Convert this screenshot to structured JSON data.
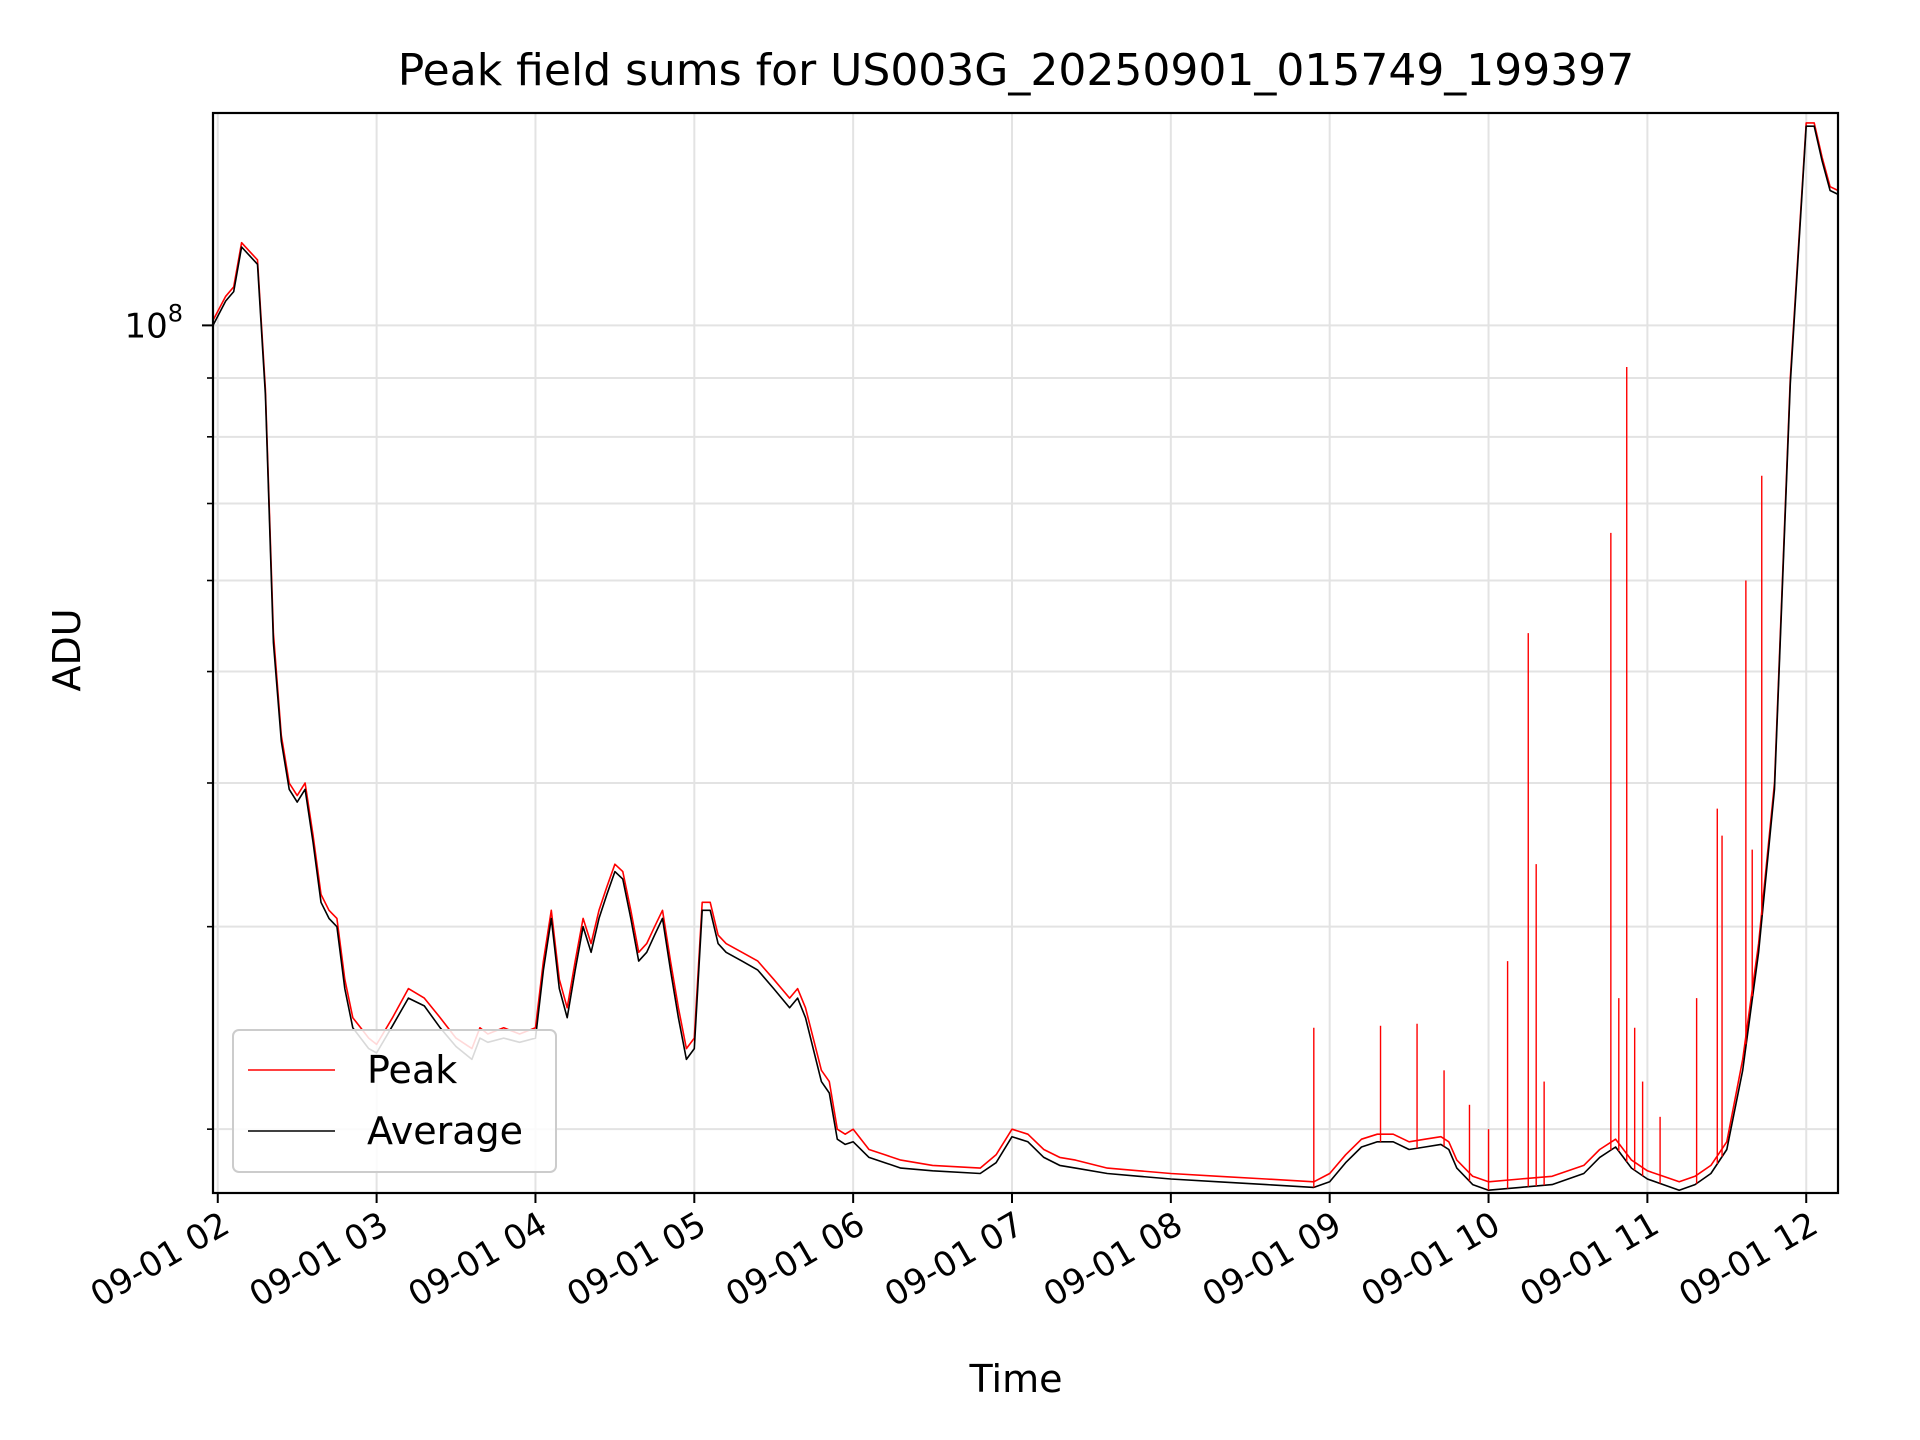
{
  "chart_data": {
    "type": "line",
    "title": "Peak field sums for US003G_20250901_015749_199397",
    "xlabel": "Time",
    "ylabel": "ADU",
    "y_scale": "log",
    "ylim": [
      17600000,
      153000000
    ],
    "y_tick_labels": [
      {
        "value": 100000000,
        "base": "10",
        "exp": "8"
      }
    ],
    "y_minor_ticks": [
      20000000,
      30000000,
      40000000,
      50000000,
      60000000,
      70000000,
      80000000,
      90000000
    ],
    "x_tick_labels": [
      "09-01 02",
      "09-01 03",
      "09-01 04",
      "09-01 05",
      "09-01 06",
      "09-01 07",
      "09-01 08",
      "09-01 09",
      "09-01 10",
      "09-01 11",
      "09-01 12"
    ],
    "x_ticks_hours": [
      2,
      3,
      4,
      5,
      6,
      7,
      8,
      9,
      10,
      11,
      12
    ],
    "xlim_hours": [
      1.97,
      12.2
    ],
    "grid": true,
    "legend_position": "lower-left",
    "series": [
      {
        "name": "Peak",
        "color": "#ff0000",
        "x": [
          1.97,
          2.05,
          2.1,
          2.15,
          2.2,
          2.25,
          2.3,
          2.35,
          2.4,
          2.45,
          2.5,
          2.55,
          2.6,
          2.65,
          2.7,
          2.75,
          2.8,
          2.85,
          2.9,
          2.95,
          3.0,
          3.1,
          3.2,
          3.3,
          3.4,
          3.5,
          3.6,
          3.65,
          3.7,
          3.8,
          3.9,
          4.0,
          4.05,
          4.1,
          4.15,
          4.2,
          4.25,
          4.3,
          4.35,
          4.4,
          4.45,
          4.5,
          4.55,
          4.6,
          4.65,
          4.7,
          4.75,
          4.8,
          4.85,
          4.9,
          4.95,
          5.0,
          5.05,
          5.1,
          5.15,
          5.2,
          5.3,
          5.4,
          5.5,
          5.6,
          5.65,
          5.7,
          5.8,
          5.85,
          5.9,
          5.95,
          6.0,
          6.1,
          6.2,
          6.3,
          6.5,
          6.8,
          6.9,
          7.0,
          7.1,
          7.2,
          7.3,
          7.4,
          7.6,
          7.8,
          8.0,
          8.3,
          8.6,
          8.9,
          9.0,
          9.1,
          9.2,
          9.3,
          9.4,
          9.5,
          9.6,
          9.7,
          9.75,
          9.8,
          9.9,
          10.0,
          10.2,
          10.4,
          10.6,
          10.7,
          10.8,
          10.9,
          11.0,
          11.1,
          11.2,
          11.3,
          11.4,
          11.5,
          11.6,
          11.7,
          11.8,
          11.9,
          12.0,
          12.05,
          12.1,
          12.15,
          12.2
        ],
        "values": [
          101000000,
          106000000,
          108000000,
          118000000,
          116000000,
          114000000,
          88000000,
          54000000,
          44000000,
          40000000,
          39000000,
          40000000,
          36000000,
          32000000,
          31000000,
          30500000,
          27000000,
          25000000,
          24500000,
          24000000,
          23700000,
          25000000,
          26500000,
          26000000,
          25000000,
          24000000,
          23500000,
          24500000,
          24200000,
          24500000,
          24200000,
          24500000,
          28000000,
          31000000,
          27000000,
          25500000,
          28000000,
          30500000,
          29000000,
          31000000,
          32500000,
          34000000,
          33500000,
          31000000,
          28500000,
          29000000,
          30000000,
          31000000,
          28000000,
          25500000,
          23500000,
          24000000,
          31500000,
          31500000,
          29500000,
          29000000,
          28500000,
          28000000,
          27000000,
          26000000,
          26500000,
          25500000,
          22500000,
          22000000,
          20000000,
          19800000,
          20000000,
          19200000,
          19000000,
          18800000,
          18600000,
          18500000,
          19000000,
          20000000,
          19800000,
          19200000,
          18900000,
          18800000,
          18500000,
          18400000,
          18300000,
          18200000,
          18100000,
          18000000,
          18300000,
          19000000,
          19600000,
          19800000,
          19800000,
          19500000,
          19600000,
          19700000,
          19500000,
          18800000,
          18200000,
          18000000,
          18100000,
          18200000,
          18600000,
          19200000,
          19600000,
          18800000,
          18400000,
          18200000,
          18000000,
          18200000,
          18600000,
          19500000,
          23000000,
          29000000,
          40000000,
          90000000,
          150000000,
          150000000,
          140000000,
          132000000,
          131000000
        ]
      },
      {
        "name": "Average",
        "color": "#000000",
        "x": [
          1.97,
          2.05,
          2.1,
          2.15,
          2.2,
          2.25,
          2.3,
          2.35,
          2.4,
          2.45,
          2.5,
          2.55,
          2.6,
          2.65,
          2.7,
          2.75,
          2.8,
          2.85,
          2.9,
          2.95,
          3.0,
          3.1,
          3.2,
          3.3,
          3.4,
          3.5,
          3.6,
          3.65,
          3.7,
          3.8,
          3.9,
          4.0,
          4.05,
          4.1,
          4.15,
          4.2,
          4.25,
          4.3,
          4.35,
          4.4,
          4.45,
          4.5,
          4.55,
          4.6,
          4.65,
          4.7,
          4.75,
          4.8,
          4.85,
          4.9,
          4.95,
          5.0,
          5.05,
          5.1,
          5.15,
          5.2,
          5.3,
          5.4,
          5.5,
          5.6,
          5.65,
          5.7,
          5.8,
          5.85,
          5.9,
          5.95,
          6.0,
          6.1,
          6.2,
          6.3,
          6.5,
          6.8,
          6.9,
          7.0,
          7.1,
          7.2,
          7.3,
          7.4,
          7.6,
          7.8,
          8.0,
          8.3,
          8.6,
          8.9,
          9.0,
          9.1,
          9.2,
          9.3,
          9.4,
          9.5,
          9.6,
          9.7,
          9.75,
          9.8,
          9.9,
          10.0,
          10.2,
          10.4,
          10.6,
          10.7,
          10.8,
          10.9,
          11.0,
          11.1,
          11.2,
          11.3,
          11.4,
          11.5,
          11.6,
          11.7,
          11.8,
          11.9,
          12.0,
          12.05,
          12.1,
          12.15,
          12.2
        ],
        "values": [
          100000000,
          105000000,
          107000000,
          117000000,
          115000000,
          113000000,
          87000000,
          53000000,
          43500000,
          39500000,
          38500000,
          39500000,
          35500000,
          31500000,
          30500000,
          30000000,
          26500000,
          24500000,
          24000000,
          23500000,
          23300000,
          24600000,
          26000000,
          25600000,
          24500000,
          23600000,
          23000000,
          24000000,
          23800000,
          24000000,
          23800000,
          24000000,
          27500000,
          30500000,
          26500000,
          25000000,
          27500000,
          30000000,
          28500000,
          30500000,
          32000000,
          33500000,
          33000000,
          30500000,
          28000000,
          28500000,
          29500000,
          30500000,
          27500000,
          25000000,
          23000000,
          23500000,
          31000000,
          31000000,
          29000000,
          28500000,
          28000000,
          27500000,
          26500000,
          25500000,
          26000000,
          25000000,
          22000000,
          21500000,
          19600000,
          19400000,
          19500000,
          18900000,
          18700000,
          18500000,
          18400000,
          18300000,
          18700000,
          19700000,
          19500000,
          18900000,
          18600000,
          18500000,
          18300000,
          18200000,
          18100000,
          18000000,
          17900000,
          17800000,
          18000000,
          18700000,
          19300000,
          19500000,
          19500000,
          19200000,
          19300000,
          19400000,
          19200000,
          18500000,
          17900000,
          17700000,
          17800000,
          17900000,
          18300000,
          18900000,
          19300000,
          18500000,
          18100000,
          17900000,
          17700000,
          17900000,
          18300000,
          19200000,
          22500000,
          28500000,
          39500000,
          89000000,
          149000000,
          149000000,
          139000000,
          131000000,
          130000000
        ]
      }
    ],
    "peak_spikes": [
      {
        "x": 8.9,
        "value": 24500000
      },
      {
        "x": 9.32,
        "value": 24600000
      },
      {
        "x": 9.55,
        "value": 24700000
      },
      {
        "x": 9.72,
        "value": 22500000
      },
      {
        "x": 9.88,
        "value": 21000000
      },
      {
        "x": 10.0,
        "value": 20000000
      },
      {
        "x": 10.12,
        "value": 28000000
      },
      {
        "x": 10.25,
        "value": 54000000
      },
      {
        "x": 10.3,
        "value": 34000000
      },
      {
        "x": 10.35,
        "value": 22000000
      },
      {
        "x": 10.77,
        "value": 66000000
      },
      {
        "x": 10.82,
        "value": 26000000
      },
      {
        "x": 10.87,
        "value": 92000000
      },
      {
        "x": 10.92,
        "value": 24500000
      },
      {
        "x": 10.97,
        "value": 22000000
      },
      {
        "x": 11.08,
        "value": 20500000
      },
      {
        "x": 11.31,
        "value": 26000000
      },
      {
        "x": 11.44,
        "value": 38000000
      },
      {
        "x": 11.47,
        "value": 36000000
      },
      {
        "x": 11.62,
        "value": 60000000
      },
      {
        "x": 11.66,
        "value": 35000000
      },
      {
        "x": 11.72,
        "value": 74000000
      }
    ]
  }
}
